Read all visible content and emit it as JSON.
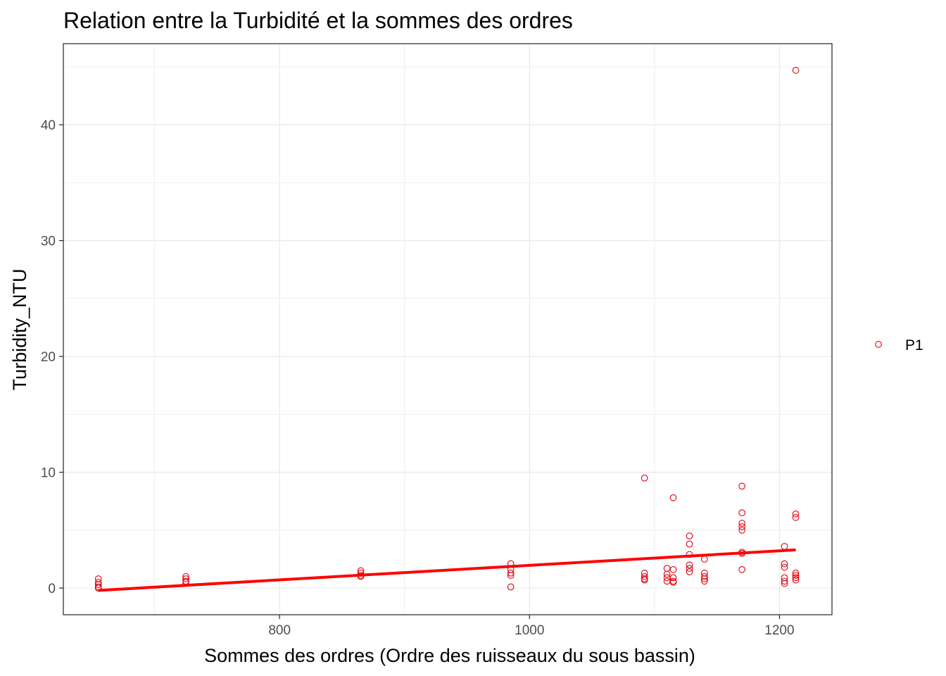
{
  "chart_data": {
    "type": "scatter",
    "title": "Relation entre la Turbidité et la sommes des ordres",
    "xlabel": "Sommes des ordres (Ordre des ruisseaux du sous bassin)",
    "ylabel": "Turbidity_NTU",
    "xlim": [
      627,
      1242
    ],
    "ylim": [
      -2.3,
      47.0
    ],
    "x_ticks": [
      800,
      1000,
      1200
    ],
    "x_tick_labels": [
      "800",
      "1000",
      "1200"
    ],
    "y_ticks": [
      0,
      10,
      20,
      30,
      40
    ],
    "y_tick_labels": [
      "0",
      "10",
      "20",
      "30",
      "40"
    ],
    "grid": true,
    "legend_position": "right",
    "colors": {
      "points": "#e0000f",
      "fit_line": "#ff0000",
      "grid": "#ebebeb",
      "panel_border": "#333333"
    },
    "series": [
      {
        "name": "P1",
        "points": [
          [
            655,
            0.8
          ],
          [
            655,
            0.5
          ],
          [
            655,
            0.3
          ],
          [
            655,
            0.1
          ],
          [
            655,
            0.0
          ],
          [
            725,
            1.0
          ],
          [
            725,
            0.8
          ],
          [
            725,
            0.6
          ],
          [
            725,
            0.5
          ],
          [
            865,
            1.5
          ],
          [
            865,
            1.3
          ],
          [
            865,
            1.1
          ],
          [
            865,
            1.0
          ],
          [
            985,
            2.1
          ],
          [
            985,
            1.6
          ],
          [
            985,
            1.3
          ],
          [
            985,
            1.1
          ],
          [
            985,
            0.1
          ],
          [
            1092,
            9.5
          ],
          [
            1092,
            1.3
          ],
          [
            1092,
            1.0
          ],
          [
            1092,
            0.8
          ],
          [
            1092,
            0.7
          ],
          [
            1110,
            1.7
          ],
          [
            1110,
            1.2
          ],
          [
            1110,
            0.9
          ],
          [
            1110,
            0.6
          ],
          [
            1115,
            7.8
          ],
          [
            1115,
            1.6
          ],
          [
            1115,
            0.9
          ],
          [
            1115,
            0.6
          ],
          [
            1115,
            0.5
          ],
          [
            1128,
            4.5
          ],
          [
            1128,
            3.8
          ],
          [
            1128,
            2.9
          ],
          [
            1128,
            2.0
          ],
          [
            1128,
            1.7
          ],
          [
            1128,
            1.4
          ],
          [
            1140,
            2.5
          ],
          [
            1140,
            1.3
          ],
          [
            1140,
            1.0
          ],
          [
            1140,
            0.8
          ],
          [
            1140,
            0.6
          ],
          [
            1170,
            8.8
          ],
          [
            1170,
            6.5
          ],
          [
            1170,
            5.6
          ],
          [
            1170,
            5.3
          ],
          [
            1170,
            5.0
          ],
          [
            1170,
            3.1
          ],
          [
            1170,
            3.0
          ],
          [
            1170,
            1.6
          ],
          [
            1204,
            3.6
          ],
          [
            1204,
            2.1
          ],
          [
            1204,
            1.8
          ],
          [
            1204,
            0.9
          ],
          [
            1204,
            0.6
          ],
          [
            1204,
            0.4
          ],
          [
            1213,
            44.7
          ],
          [
            1213,
            6.4
          ],
          [
            1213,
            6.1
          ],
          [
            1213,
            1.3
          ],
          [
            1213,
            1.1
          ],
          [
            1213,
            0.9
          ],
          [
            1213,
            0.7
          ]
        ]
      }
    ],
    "fit_line": {
      "x": [
        655,
        1213
      ],
      "y": [
        -0.2,
        3.3
      ]
    }
  }
}
